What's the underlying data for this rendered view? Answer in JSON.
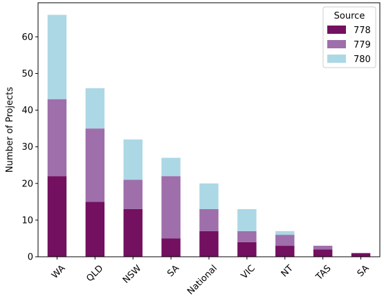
{
  "chart_data": {
    "type": "bar",
    "stacked": true,
    "categories": [
      "WA",
      "QLD",
      "NSW",
      "SA",
      "National",
      "VIC",
      "NT",
      "TAS",
      "SA"
    ],
    "series": [
      {
        "name": "778",
        "color": "#731060",
        "values": [
          22,
          15,
          13,
          5,
          7,
          4,
          3,
          2,
          1
        ]
      },
      {
        "name": "779",
        "color": "#9e6fab",
        "values": [
          21,
          20,
          8,
          17,
          6,
          3,
          3,
          1,
          0
        ]
      },
      {
        "name": "780",
        "color": "#acd8e5",
        "values": [
          23,
          11,
          11,
          5,
          7,
          6,
          1,
          0,
          0
        ]
      }
    ],
    "title": "",
    "xlabel": "",
    "ylabel": "Number of Projects",
    "ylim": [
      0,
      69.3
    ],
    "yticks": [
      0,
      10,
      20,
      30,
      40,
      50,
      60
    ],
    "grid": false,
    "legend": {
      "title": "Source",
      "position": "top-right"
    }
  }
}
